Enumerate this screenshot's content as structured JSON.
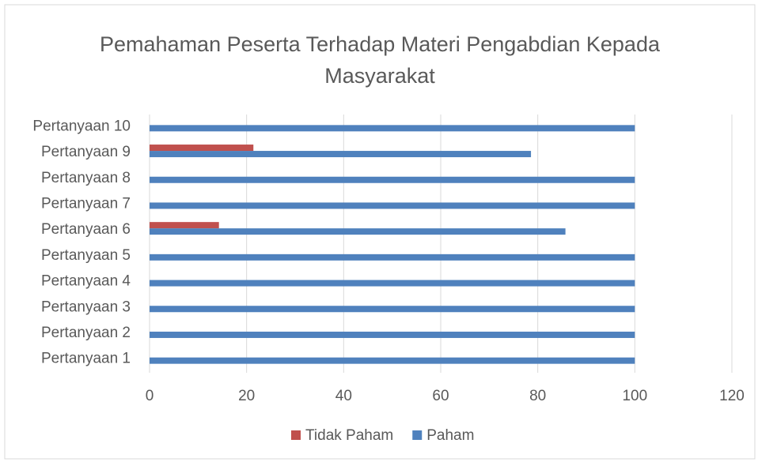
{
  "chart_data": {
    "type": "hbar",
    "title": "Pemahaman Peserta Terhadap Materi Pengabdian Kepada Masyarakat",
    "categories": [
      "Pertanyaan 1",
      "Pertanyaan 2",
      "Pertanyaan 3",
      "Pertanyaan 4",
      "Pertanyaan 5",
      "Pertanyaan 6",
      "Pertanyaan 7",
      "Pertanyaan 8",
      "Pertanyaan 9",
      "Pertanyaan 10"
    ],
    "series": [
      {
        "name": "Tidak Paham",
        "color": "#c0504d",
        "values": [
          0,
          0,
          0,
          0,
          0,
          14.3,
          0,
          0,
          21.4,
          0
        ]
      },
      {
        "name": "Paham",
        "color": "#4f81bd",
        "values": [
          100,
          100,
          100,
          100,
          100,
          85.7,
          100,
          100,
          78.6,
          100
        ]
      }
    ],
    "xlim": [
      0,
      120
    ],
    "xticks": [
      0,
      20,
      40,
      60,
      80,
      100,
      120
    ],
    "grid": true,
    "legend": "bottom"
  }
}
